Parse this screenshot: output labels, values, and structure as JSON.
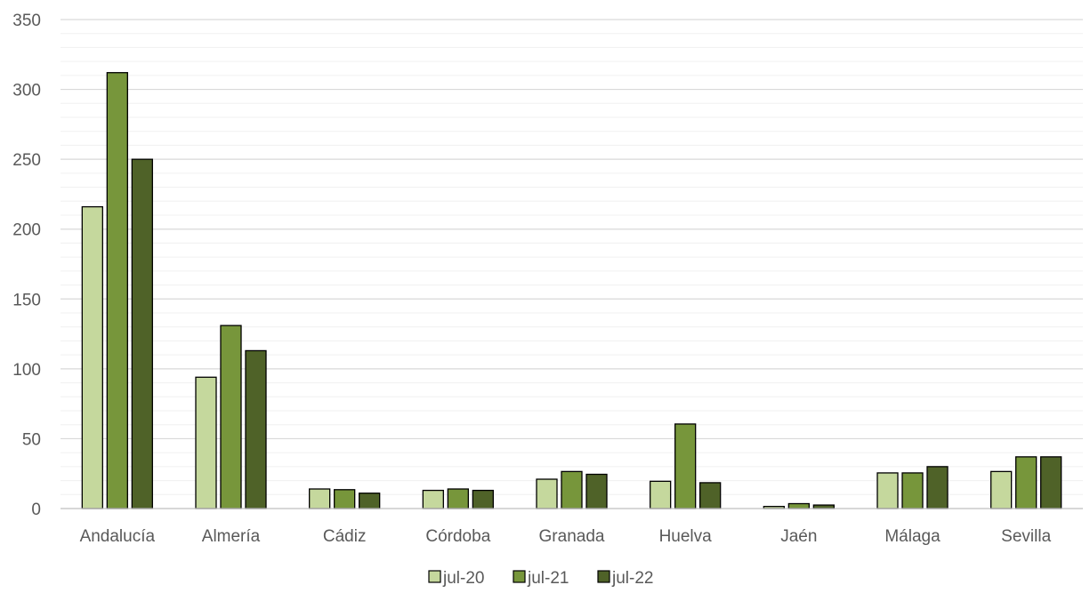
{
  "chart_data": {
    "type": "bar",
    "categories": [
      "Andalucía",
      "Almería",
      "Cádiz",
      "Córdoba",
      "Granada",
      "Huelva",
      "Jaén",
      "Málaga",
      "Sevilla"
    ],
    "series": [
      {
        "name": "jul-20",
        "color": "#c5d89d",
        "values": [
          216,
          94,
          14,
          13,
          21,
          19.5,
          1.5,
          25.5,
          26.5
        ]
      },
      {
        "name": "jul-21",
        "color": "#77963b",
        "values": [
          312,
          131,
          13.5,
          14,
          26.5,
          60.5,
          3.5,
          25.5,
          37
        ]
      },
      {
        "name": "jul-22",
        "color": "#4f6228",
        "values": [
          250,
          113,
          11,
          13,
          24.5,
          18.5,
          2.5,
          30,
          37
        ]
      }
    ],
    "ylim": [
      0,
      350
    ],
    "yticks": [
      "0",
      "50",
      "100",
      "150",
      "200",
      "250",
      "300",
      "350"
    ],
    "major_step": 50,
    "minor_step": 10,
    "grid": true,
    "legend_position": "bottom-center"
  }
}
